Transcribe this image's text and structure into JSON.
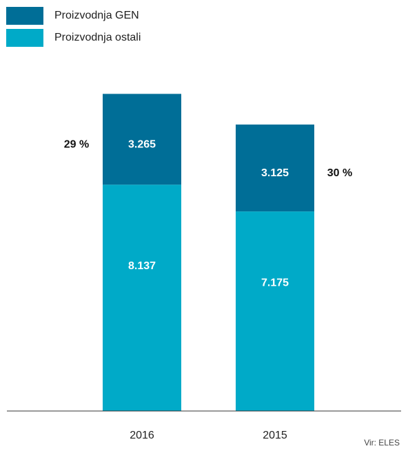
{
  "chart_data": {
    "type": "bar",
    "stacked": true,
    "categories": [
      "2016",
      "2015"
    ],
    "series": [
      {
        "name": "Proizvodnja GEN",
        "values": [
          3265,
          3125
        ],
        "value_labels": [
          "3.265",
          "3.125"
        ],
        "color": "#006e97"
      },
      {
        "name": "Proizvodnja ostali",
        "values": [
          8137,
          7175
        ],
        "value_labels": [
          "8.137",
          "7.175"
        ],
        "color": "#00aac8"
      }
    ],
    "share_labels": [
      "29 %",
      "30 %"
    ],
    "legend_position": "top-left",
    "grid": false,
    "source": "Vir: ELES"
  }
}
